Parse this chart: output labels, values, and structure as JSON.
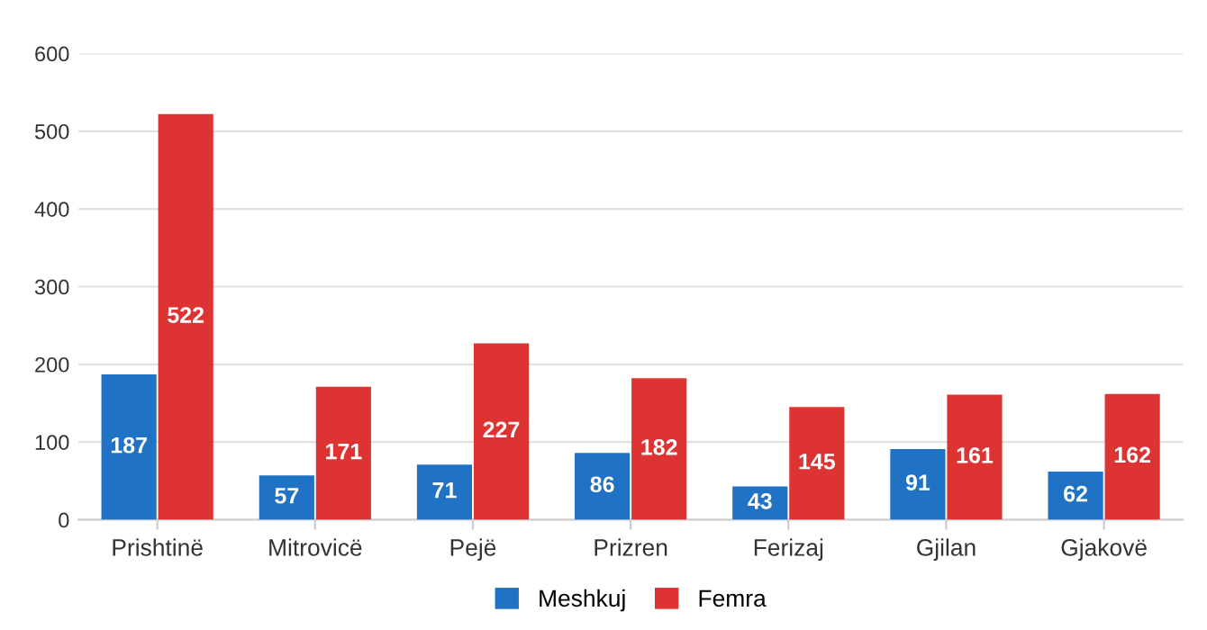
{
  "chart_data": {
    "type": "bar",
    "categories": [
      "Prishtinë",
      "Mitrovicë",
      "Pejë",
      "Prizren",
      "Ferizaj",
      "Gjilan",
      "Gjakovë"
    ],
    "series": [
      {
        "name": "Meshkuj",
        "color": "#1f72c4",
        "values": [
          187,
          57,
          71,
          86,
          43,
          91,
          62
        ]
      },
      {
        "name": "Femra",
        "color": "#dd3333",
        "values": [
          522,
          171,
          227,
          182,
          145,
          161,
          162
        ]
      }
    ],
    "ylim": [
      0,
      600
    ],
    "yticks": [
      0,
      100,
      200,
      300,
      400,
      500,
      600
    ],
    "grid": "y",
    "legend": "bottom",
    "data_labels": true
  }
}
